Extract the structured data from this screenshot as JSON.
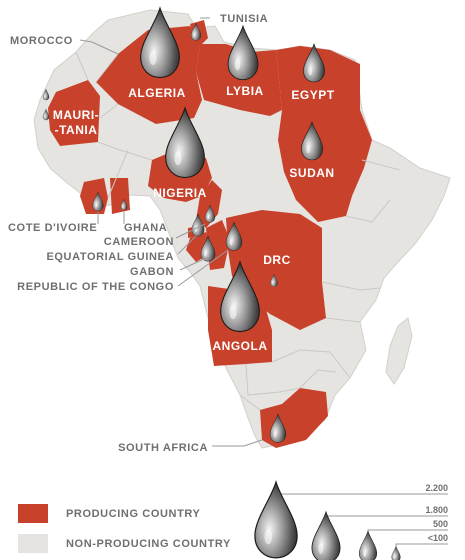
{
  "colors": {
    "producing": "#c8412b",
    "non_producing": "#e6e4e0",
    "label_on_map": "#ffffff",
    "label_outside": "#6f6f6f"
  },
  "map": {
    "labels_on_map": {
      "algeria": "ALGERIA",
      "lybia": "LYBIA",
      "egypt": "EGYPT",
      "mauritania_line1": "MAURI-",
      "mauritania_line2": "-TANIA",
      "nigeria": "NIGERIA",
      "sudan": "SUDAN",
      "drc": "DRC",
      "angola": "ANGOLA"
    },
    "labels_outside": {
      "tunisia": "TUNISIA",
      "morocco": "MOROCCO",
      "cote_divoire": "COTE D'IVOIRE",
      "ghana": "GHANA",
      "cameroon": "CAMEROON",
      "equatorial_guinea": "EQUATORIAL GUINEA",
      "gabon": "GABON",
      "republic_of_the_congo": "REPUBLIC OF THE CONGO",
      "south_africa": "SOUTH AFRICA"
    }
  },
  "legend": {
    "producing": "PRODUCING COUNTRY",
    "non_producing": "NON-PRODUCING COUNTRY"
  },
  "scale": {
    "values": [
      "2.200",
      "1.800",
      "500",
      "<100"
    ]
  }
}
